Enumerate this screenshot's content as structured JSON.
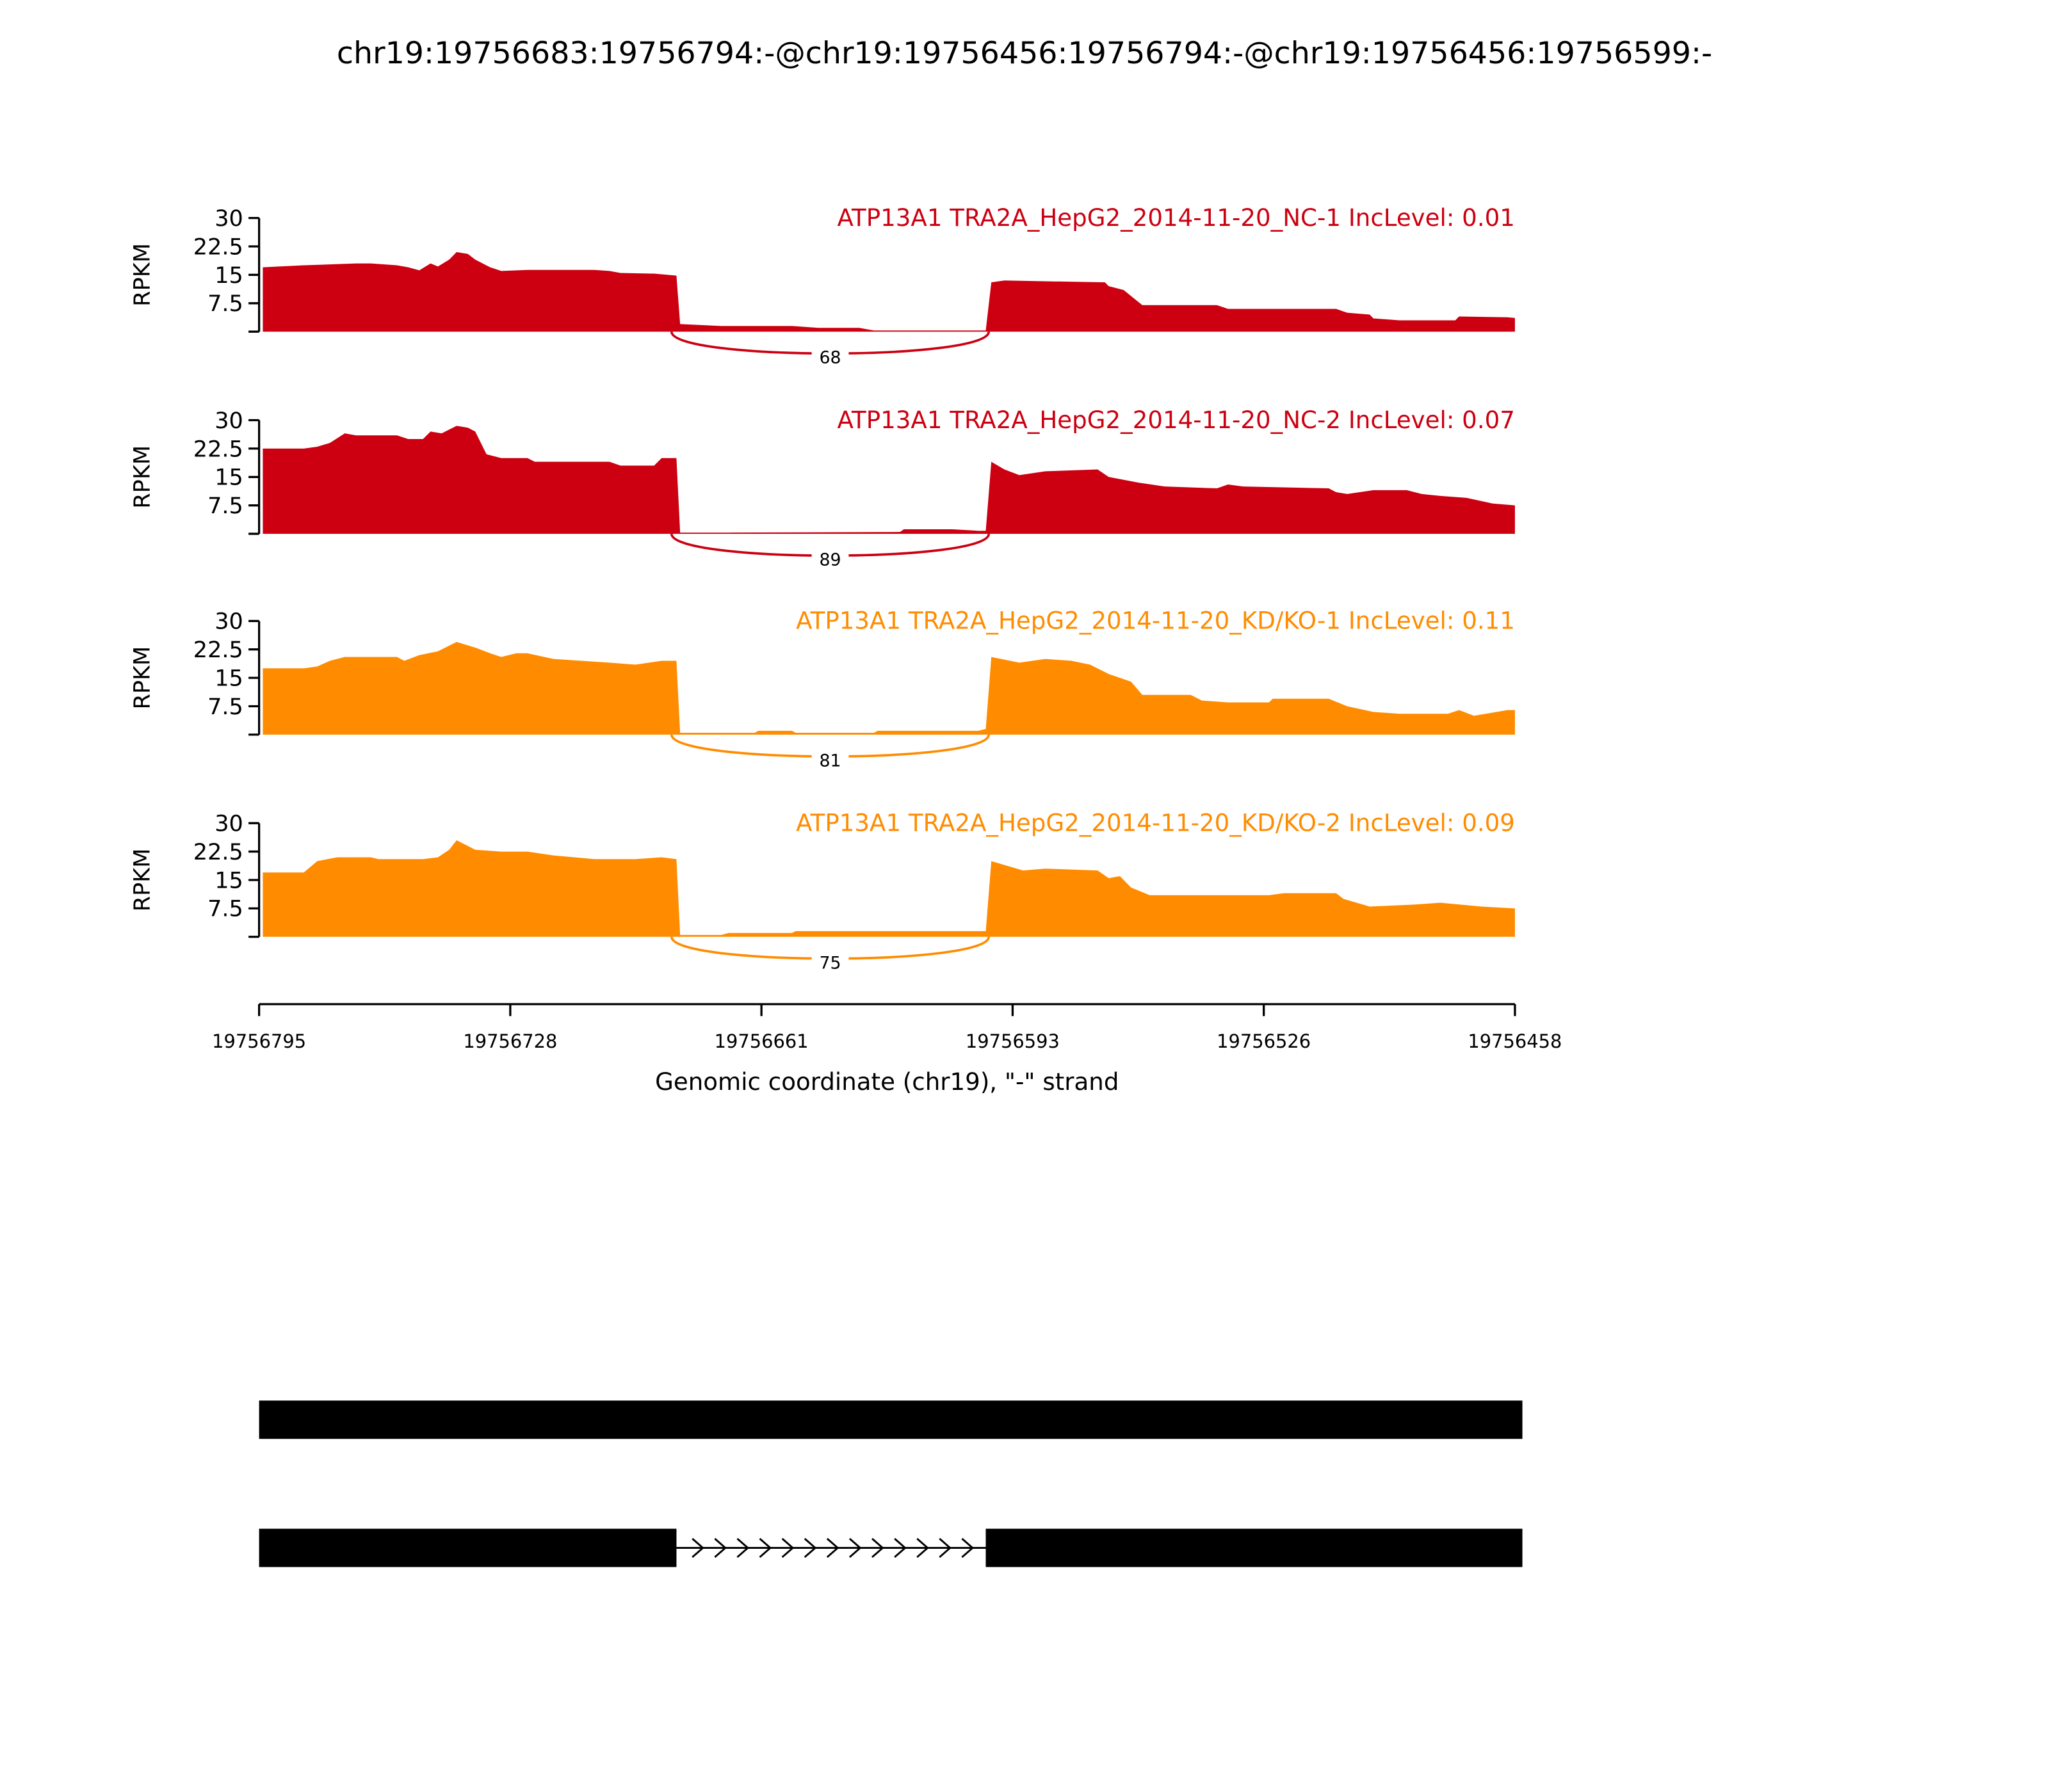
{
  "chart_data": {
    "type": "area",
    "title": "chr19:19756683:19756794:-@chr19:19756456:19756794:-@chr19:19756456:19756599:-",
    "xlabel": "Genomic coordinate (chr19), \"-\" strand",
    "ylabel": "RPKM",
    "x_origin": 19756795,
    "x_end": 19756458,
    "x_ticks": [
      "19756795",
      "19756728",
      "19756661",
      "19756593",
      "19756526",
      "19756458"
    ],
    "y_ticks": [
      "30",
      "22.5",
      "15",
      "7.5"
    ],
    "ylim": [
      0,
      30
    ],
    "colors": {
      "NC": "#CC0011",
      "KD": "#FF8C00"
    },
    "tracks": [
      {
        "label": "ATP13A1 TRA2A_HepG2_2014-11-20_NC-1 IncLevel: 0.01",
        "group": "NC",
        "junction_count": "68",
        "coverage_offset_bp": [
          [
            1,
            17
          ],
          [
            12,
            17.5
          ],
          [
            26,
            18
          ],
          [
            30,
            18
          ],
          [
            37,
            17.5
          ],
          [
            40,
            17
          ],
          [
            43,
            16.2
          ],
          [
            46,
            18
          ],
          [
            48,
            17.2
          ],
          [
            51,
            19
          ],
          [
            53,
            21
          ],
          [
            56,
            20.5
          ],
          [
            58,
            19
          ],
          [
            62,
            17
          ],
          [
            65,
            16
          ],
          [
            72,
            16.3
          ],
          [
            90,
            16.3
          ],
          [
            94,
            16
          ],
          [
            97,
            15.5
          ],
          [
            106,
            15.3
          ],
          [
            112,
            14.8
          ],
          [
            113,
            2
          ],
          [
            124,
            1.5
          ],
          [
            143,
            1.5
          ],
          [
            150,
            1
          ],
          [
            161,
            1
          ],
          [
            165,
            0.3
          ],
          [
            195,
            0.3
          ],
          [
            196.5,
            13
          ],
          [
            200,
            13.5
          ],
          [
            227,
            13
          ],
          [
            228,
            12
          ],
          [
            232,
            11
          ],
          [
            237,
            7
          ],
          [
            243,
            7
          ],
          [
            257,
            7
          ],
          [
            260,
            6
          ],
          [
            289,
            6
          ],
          [
            292,
            5
          ],
          [
            298,
            4.5
          ],
          [
            299,
            3.5
          ],
          [
            306,
            3
          ],
          [
            321,
            3
          ],
          [
            322,
            4
          ],
          [
            335,
            3.8
          ],
          [
            337,
            3.6
          ]
        ]
      },
      {
        "label": "ATP13A1 TRA2A_HepG2_2014-11-20_NC-2 IncLevel: 0.07",
        "group": "NC",
        "junction_count": "89",
        "coverage_offset_bp": [
          [
            1,
            22.5
          ],
          [
            12,
            22.5
          ],
          [
            15.6,
            23
          ],
          [
            19,
            24
          ],
          [
            23,
            26.5
          ],
          [
            26,
            26
          ],
          [
            37,
            26
          ],
          [
            40,
            25
          ],
          [
            44,
            25
          ],
          [
            46,
            27
          ],
          [
            49,
            26.5
          ],
          [
            53,
            28.5
          ],
          [
            56,
            28
          ],
          [
            58,
            27
          ],
          [
            61,
            21
          ],
          [
            65,
            20
          ],
          [
            72,
            20
          ],
          [
            74,
            19
          ],
          [
            94,
            19
          ],
          [
            97,
            18
          ],
          [
            106,
            18
          ],
          [
            108,
            20
          ],
          [
            112,
            20
          ],
          [
            113,
            0.3
          ],
          [
            126,
            0.3
          ],
          [
            172,
            0.5
          ],
          [
            173,
            1.2
          ],
          [
            186,
            1.2
          ],
          [
            193,
            0.8
          ],
          [
            195,
            0.8
          ],
          [
            196.5,
            19
          ],
          [
            200,
            17
          ],
          [
            204,
            15.5
          ],
          [
            211,
            16.5
          ],
          [
            225,
            17
          ],
          [
            228,
            15
          ],
          [
            236,
            13.5
          ],
          [
            243,
            12.5
          ],
          [
            257,
            12
          ],
          [
            260,
            13
          ],
          [
            264,
            12.5
          ],
          [
            287,
            12
          ],
          [
            289,
            11
          ],
          [
            292,
            10.5
          ],
          [
            299,
            11.5
          ],
          [
            308,
            11.5
          ],
          [
            312,
            10.5
          ],
          [
            317,
            10
          ],
          [
            324,
            9.5
          ],
          [
            331,
            8
          ],
          [
            337,
            7.5
          ]
        ]
      },
      {
        "label": "ATP13A1 TRA2A_HepG2_2014-11-20_KD/KO-1 IncLevel: 0.11",
        "group": "KD",
        "junction_count": "81",
        "coverage_offset_bp": [
          [
            1,
            17.5
          ],
          [
            12,
            17.5
          ],
          [
            15.6,
            18
          ],
          [
            19,
            19.5
          ],
          [
            23,
            20.5
          ],
          [
            37,
            20.5
          ],
          [
            39,
            19.5
          ],
          [
            43,
            21
          ],
          [
            48,
            22
          ],
          [
            53,
            24.5
          ],
          [
            58,
            23
          ],
          [
            62,
            21.5
          ],
          [
            65,
            20.5
          ],
          [
            69,
            21.5
          ],
          [
            72,
            21.5
          ],
          [
            79,
            20
          ],
          [
            94,
            19
          ],
          [
            101,
            18.5
          ],
          [
            108,
            19.5
          ],
          [
            112,
            19.5
          ],
          [
            113,
            0.5
          ],
          [
            133,
            0.5
          ],
          [
            134,
            1
          ],
          [
            143,
            1
          ],
          [
            144,
            0.5
          ],
          [
            165,
            0.5
          ],
          [
            166,
            1
          ],
          [
            193,
            1
          ],
          [
            195,
            1.5
          ],
          [
            196.5,
            20.5
          ],
          [
            204,
            19
          ],
          [
            211,
            20
          ],
          [
            218,
            19.5
          ],
          [
            223,
            18.5
          ],
          [
            228,
            16
          ],
          [
            234,
            14
          ],
          [
            237,
            10.5
          ],
          [
            250,
            10.5
          ],
          [
            253,
            9
          ],
          [
            260,
            8.5
          ],
          [
            271,
            8.5
          ],
          [
            272,
            9.5
          ],
          [
            287,
            9.5
          ],
          [
            292,
            7.5
          ],
          [
            299,
            6
          ],
          [
            306,
            5.5
          ],
          [
            319,
            5.5
          ],
          [
            322,
            6.5
          ],
          [
            326,
            5
          ],
          [
            335,
            6.5
          ],
          [
            337,
            6.5
          ]
        ]
      },
      {
        "label": "ATP13A1 TRA2A_HepG2_2014-11-20_KD/KO-2 IncLevel: 0.09",
        "group": "KD",
        "junction_count": "75",
        "coverage_offset_bp": [
          [
            1,
            17
          ],
          [
            12,
            17
          ],
          [
            15.6,
            20
          ],
          [
            21,
            21
          ],
          [
            30,
            21
          ],
          [
            32,
            20.5
          ],
          [
            44,
            20.5
          ],
          [
            48,
            21
          ],
          [
            51,
            23
          ],
          [
            53,
            25.5
          ],
          [
            58,
            23
          ],
          [
            65,
            22.5
          ],
          [
            72,
            22.5
          ],
          [
            79,
            21.5
          ],
          [
            90,
            20.5
          ],
          [
            101,
            20.5
          ],
          [
            108,
            21
          ],
          [
            112,
            20.5
          ],
          [
            113,
            0.5
          ],
          [
            124,
            0.5
          ],
          [
            126,
            1
          ],
          [
            143,
            1
          ],
          [
            144,
            1.5
          ],
          [
            195,
            1.5
          ],
          [
            196.5,
            20
          ],
          [
            205,
            17.5
          ],
          [
            211,
            18
          ],
          [
            225,
            17.5
          ],
          [
            228,
            15.5
          ],
          [
            231,
            16
          ],
          [
            234,
            13
          ],
          [
            239,
            11
          ],
          [
            243,
            11
          ],
          [
            271,
            11
          ],
          [
            275,
            11.5
          ],
          [
            289,
            11.5
          ],
          [
            291,
            10
          ],
          [
            298,
            8
          ],
          [
            310,
            8.5
          ],
          [
            317,
            9
          ],
          [
            328,
            8
          ],
          [
            337,
            7.5
          ]
        ]
      }
    ],
    "gene_models": [
      {
        "exons": [
          [
            19756456,
            19756794
          ]
        ]
      },
      {
        "exons": [
          [
            19756683,
            19756794
          ],
          [
            19756456,
            19756599
          ]
        ]
      }
    ]
  }
}
